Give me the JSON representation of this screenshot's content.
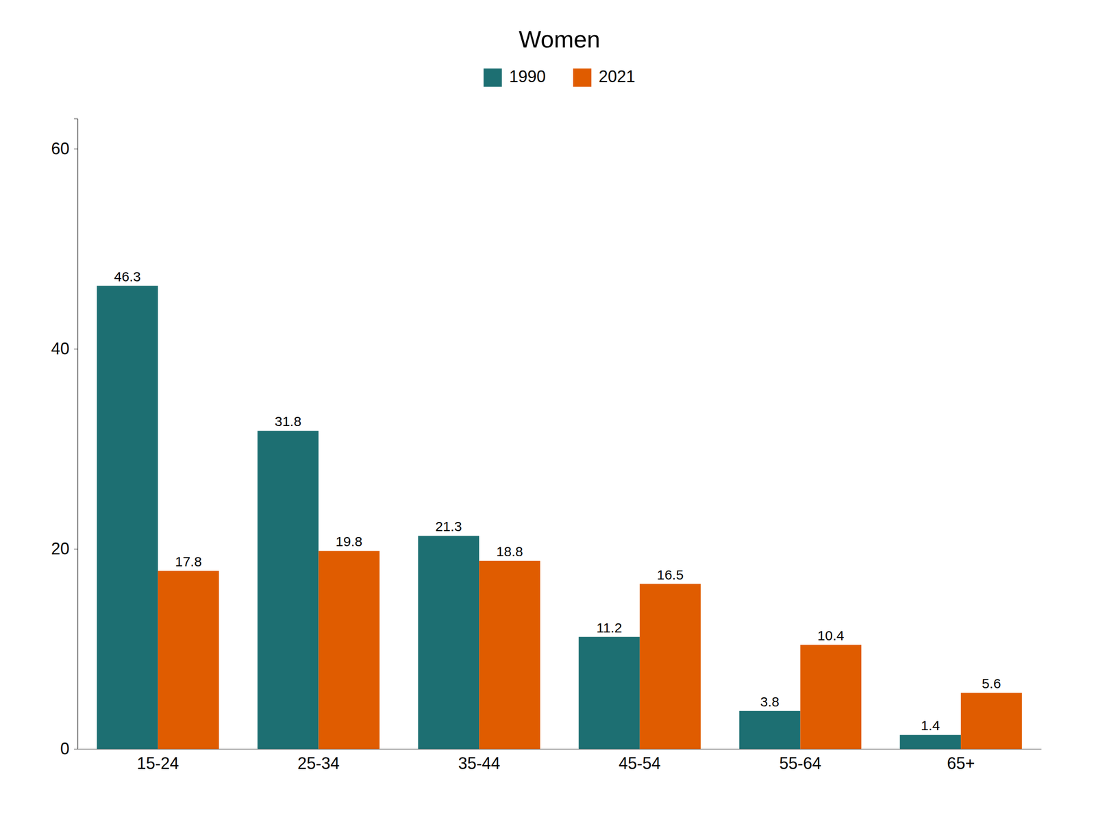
{
  "chart_data": {
    "type": "bar",
    "title": "Women",
    "categories": [
      "15-24",
      "25-34",
      "35-44",
      "45-54",
      "55-64",
      "65+"
    ],
    "series": [
      {
        "name": "1990",
        "color": "#1d6f72",
        "values": [
          46.3,
          31.8,
          21.3,
          11.2,
          3.8,
          1.4
        ]
      },
      {
        "name": "2021",
        "color": "#e05c00",
        "values": [
          17.8,
          19.8,
          18.8,
          16.5,
          10.4,
          5.6
        ]
      }
    ],
    "ylim": [
      0,
      63
    ],
    "yticks": [
      0,
      20,
      40,
      60
    ],
    "grid": false,
    "legend": "top",
    "data_labels": true
  }
}
